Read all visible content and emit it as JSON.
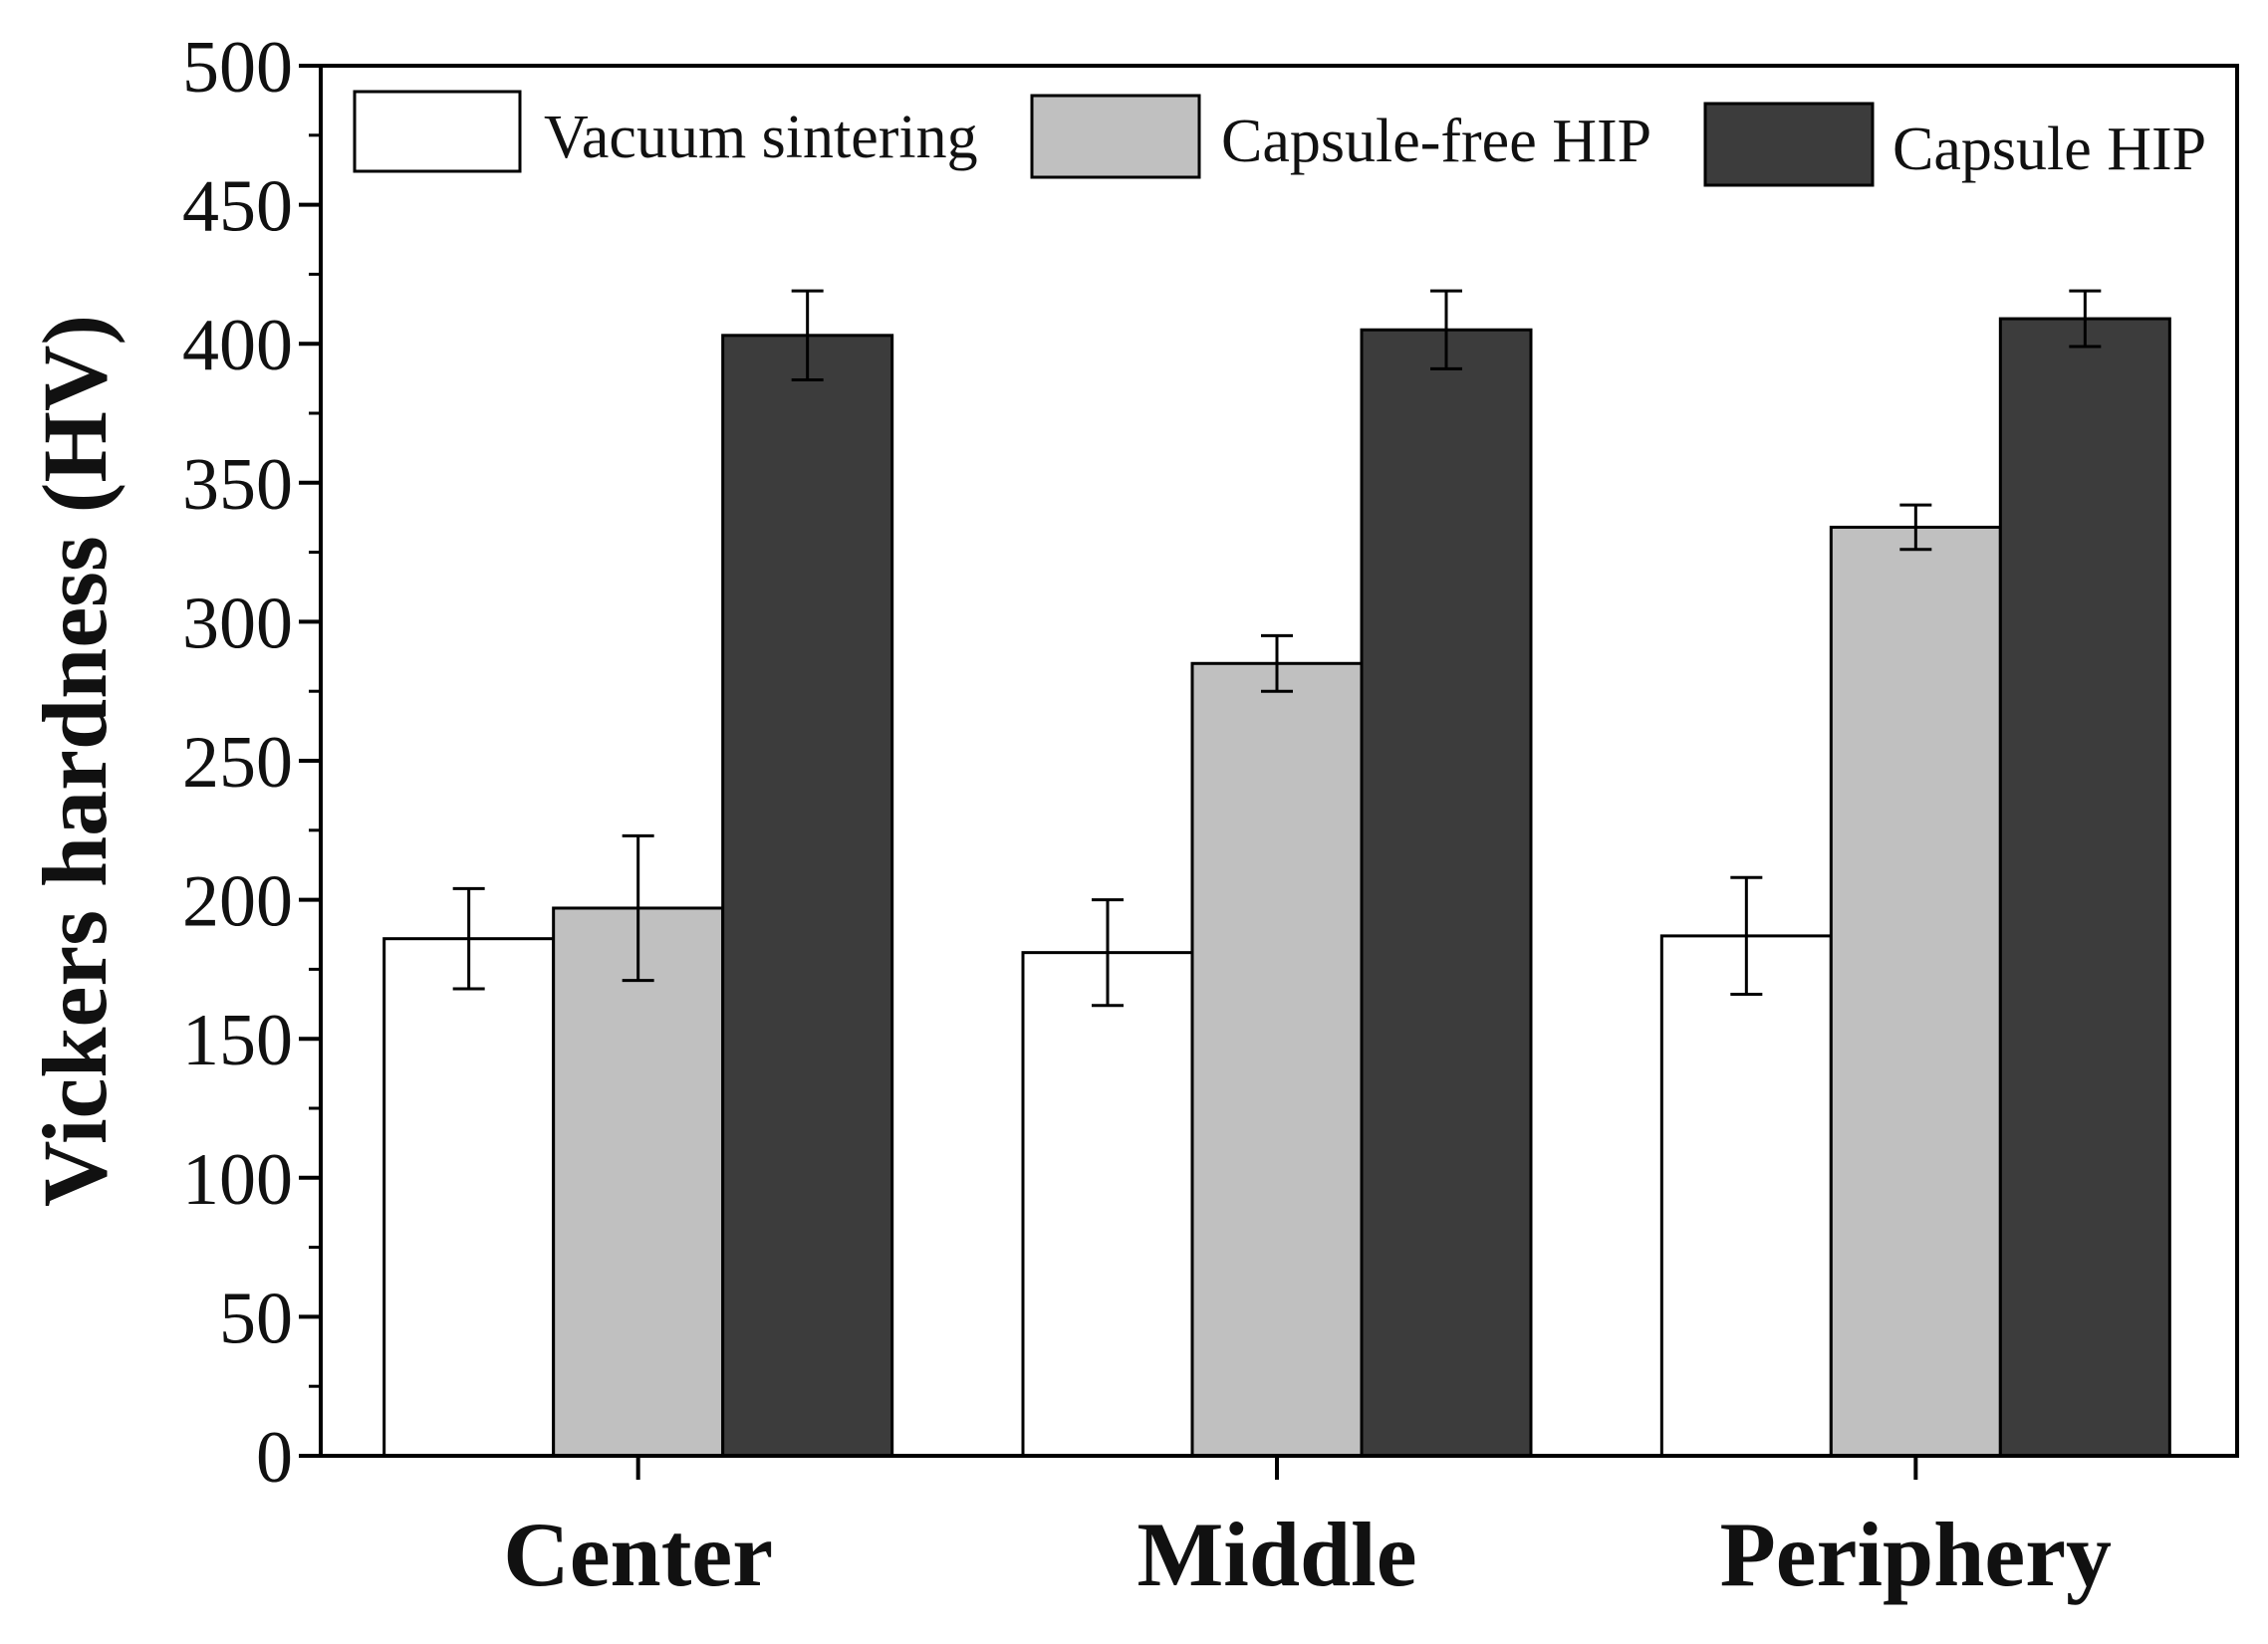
{
  "chart_data": {
    "type": "bar",
    "title": "",
    "xlabel": "",
    "ylabel": "Vickers hardness (HV)",
    "ylim": [
      0,
      500
    ],
    "yticks": [
      0,
      50,
      100,
      150,
      200,
      250,
      300,
      350,
      400,
      450,
      500
    ],
    "categories": [
      "Center",
      "Middle",
      "Periphery"
    ],
    "series": [
      {
        "name": "Vacuum sintering",
        "color": "#ffffff",
        "values": [
          186,
          181,
          187
        ],
        "errors": [
          18,
          19,
          21
        ]
      },
      {
        "name": "Capsule-free HIP",
        "color": "#c0c0c0",
        "values": [
          197,
          285,
          334
        ],
        "errors": [
          26,
          10,
          8
        ]
      },
      {
        "name": "Capsule HIP",
        "color": "#3c3c3c",
        "values": [
          403,
          405,
          409
        ],
        "errors": [
          16,
          14,
          10
        ]
      }
    ],
    "legend_position": "top"
  }
}
